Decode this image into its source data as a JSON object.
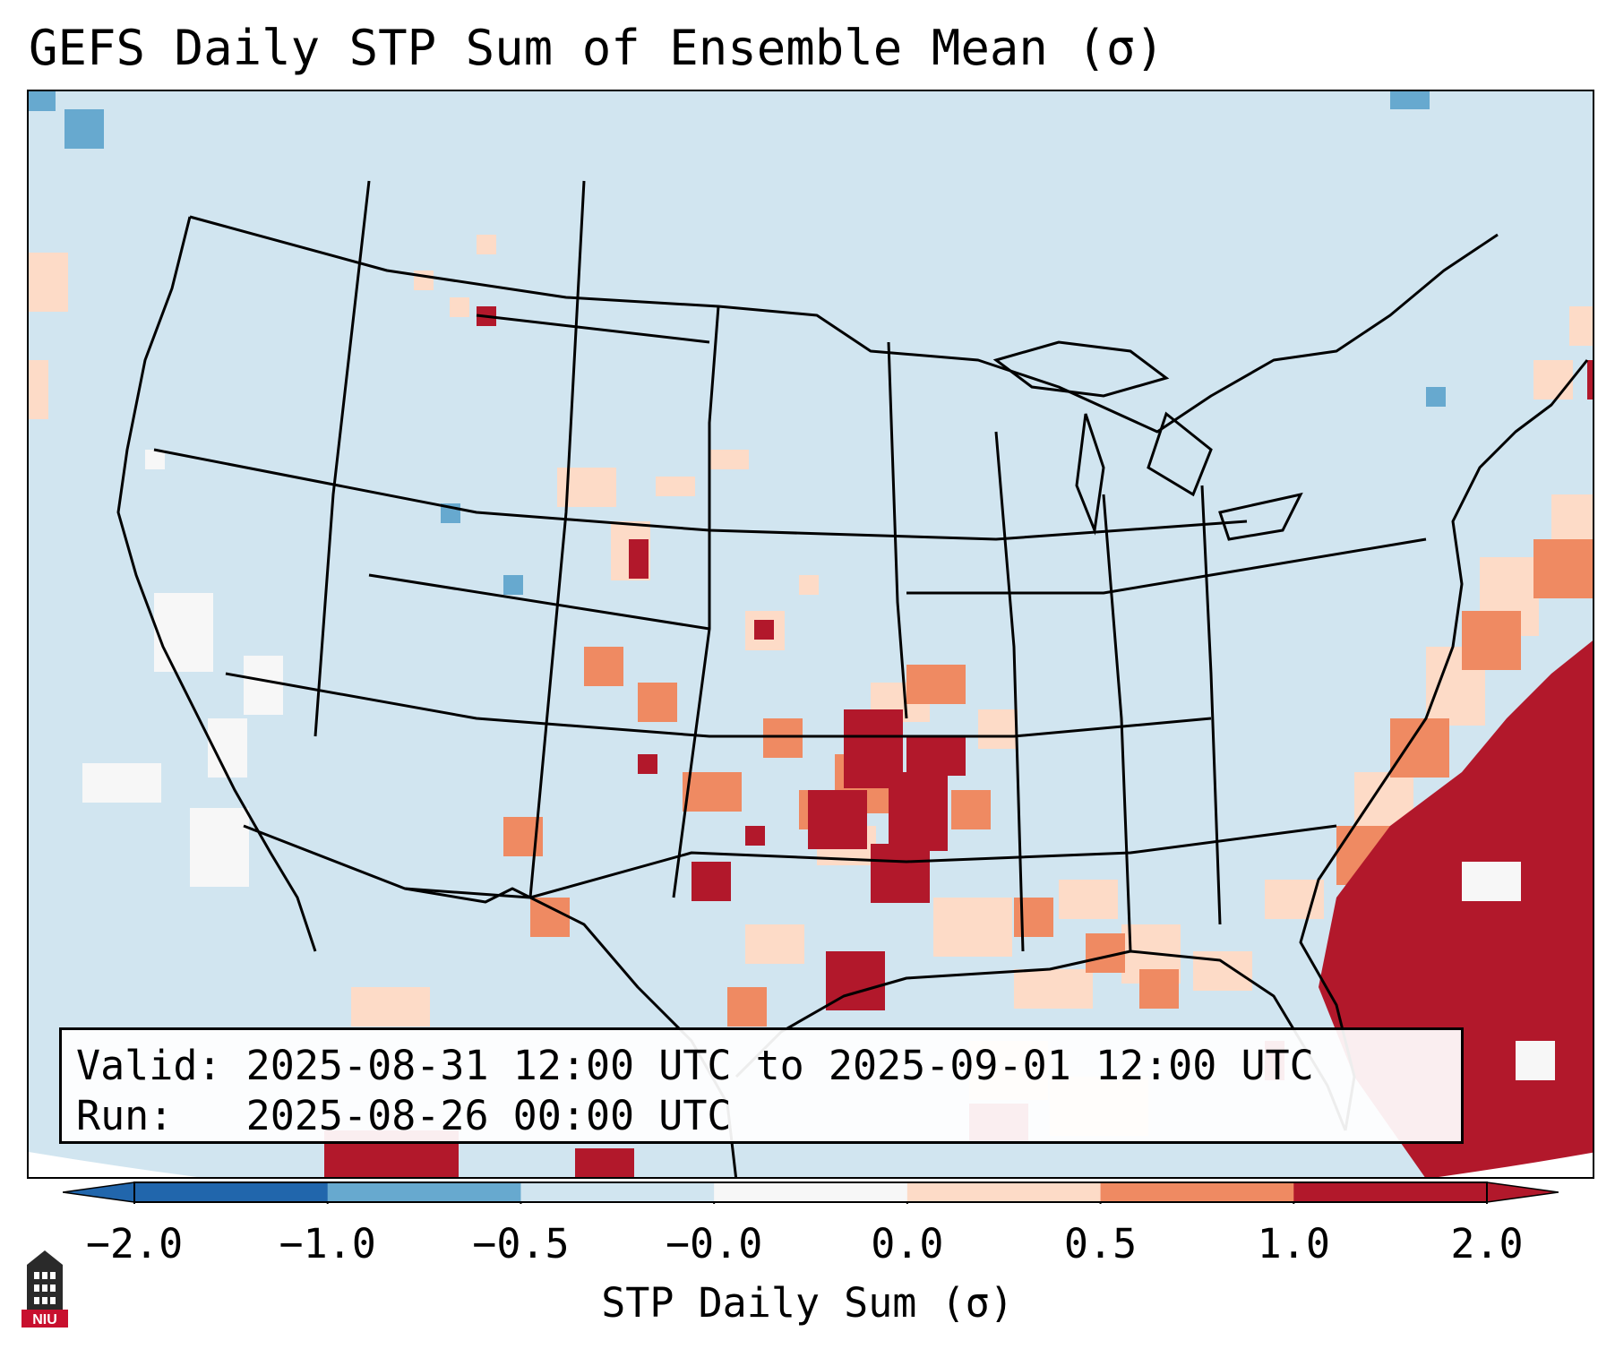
{
  "title": "GEFS Daily STP Sum of Ensemble Mean (σ)",
  "info": {
    "valid_label": "Valid:",
    "valid_value": "2025-08-31 12:00 UTC to 2025-09-01 12:00 UTC",
    "run_label": "Run:",
    "run_value": "2025-08-26 00:00 UTC"
  },
  "colorbar": {
    "label": "STP Daily Sum (σ)",
    "ticks": [
      "−2.0",
      "−1.0",
      "−0.5",
      "−0.0",
      "0.0",
      "0.5",
      "1.0",
      "2.0"
    ],
    "colors": [
      "#2166ac",
      "#67a9cf",
      "#d1e5f0",
      "#f7f7f7",
      "#fddbc7",
      "#ef8a62",
      "#b2182b"
    ],
    "under_color": "#2166ac",
    "over_color": "#b2182b"
  },
  "map": {
    "background_color": "#d1e5f0",
    "outside_color": "#ffffff",
    "border_color": "#000000"
  },
  "logo": {
    "text": "NIU",
    "color": "#c8102e"
  }
}
